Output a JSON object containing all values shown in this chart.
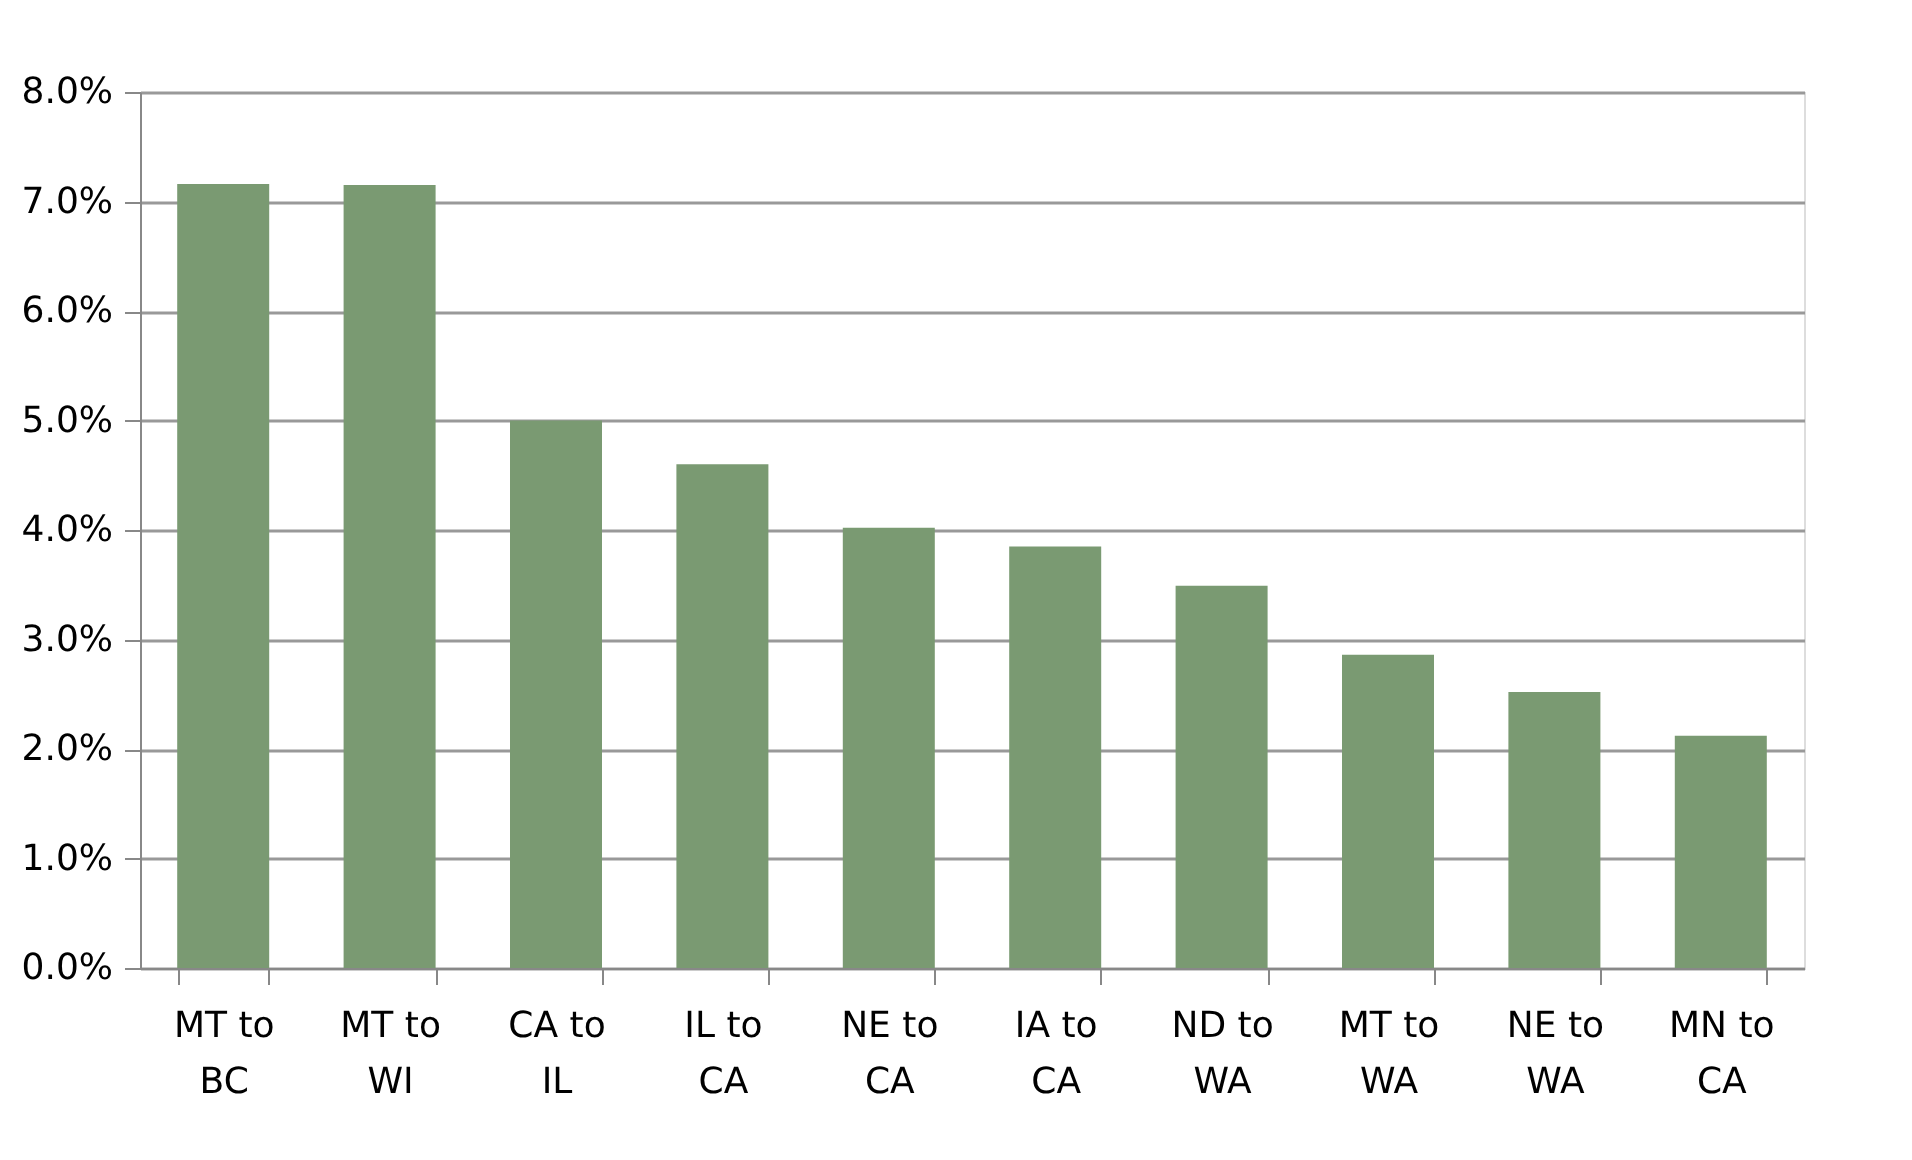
{
  "chart_data": {
    "type": "bar",
    "categories": [
      "MT to BC",
      "MT to WI",
      "CA to IL",
      "IL to CA",
      "NE to CA",
      "IA to CA",
      "ND to WA",
      "MT to WA",
      "NE to WA",
      "MN to CA"
    ],
    "values": [
      7.16,
      7.15,
      5.0,
      4.6,
      4.02,
      3.85,
      3.49,
      2.86,
      2.52,
      2.12
    ],
    "color": "#7a9a72",
    "ylim": [
      0,
      8
    ],
    "yticks": [
      {
        "value": 0,
        "label": "0.0%"
      },
      {
        "value": 1,
        "label": "1.0%"
      },
      {
        "value": 2,
        "label": "2.0%"
      },
      {
        "value": 3,
        "label": "3.0%"
      },
      {
        "value": 4,
        "label": "4.0%"
      },
      {
        "value": 5,
        "label": "5.0%"
      },
      {
        "value": 6,
        "label": "6.0%"
      },
      {
        "value": 7,
        "label": "7.0%"
      },
      {
        "value": 8,
        "label": "8.0%"
      }
    ],
    "grid": "y"
  }
}
